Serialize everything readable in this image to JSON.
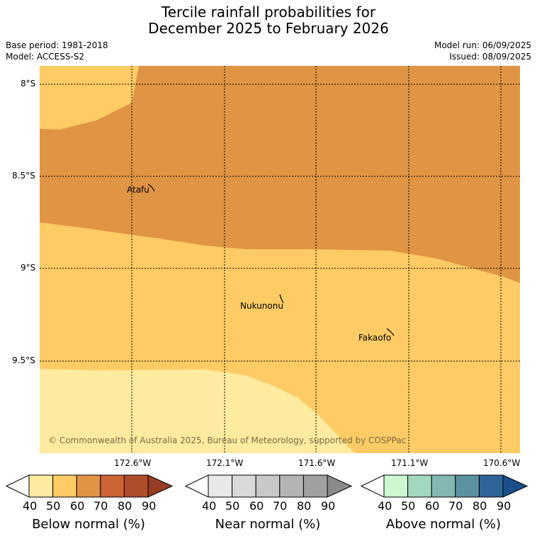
{
  "title": {
    "line1": "Tercile rainfall probabilities for",
    "line2": "December 2025 to February 2026"
  },
  "meta": {
    "base_period": "Base period: 1981-2018",
    "model": "Model: ACCESS-S2",
    "model_run": "Model run: 06/09/2025",
    "issued": "Issued: 08/09/2025"
  },
  "map": {
    "lat_ticks": [
      "8°S",
      "8.5°S",
      "9°S",
      "9.5°S"
    ],
    "lon_ticks": [
      "172.6°W",
      "172.1°W",
      "171.6°W",
      "171.1°W",
      "170.6°W"
    ],
    "places": [
      "Atafu",
      "Nukunonu",
      "Fakaofo"
    ],
    "copyright": "© Commonwealth of Australia 2025, Bureau of Meteorology, supported by COSPPac",
    "colors": {
      "below_50_60": "#fecb65",
      "below_60_70": "#e09544",
      "below_40_50": "#feeba0"
    }
  },
  "colorbars": [
    {
      "label": "Below normal (%)",
      "ticks": [
        "40",
        "50",
        "60",
        "70",
        "80",
        "90"
      ],
      "colors": [
        "#ffffff",
        "#feeba0",
        "#fecb65",
        "#e09544",
        "#cc6434",
        "#b04d2c",
        "#963b24"
      ]
    },
    {
      "label": "Near normal (%)",
      "ticks": [
        "40",
        "50",
        "60",
        "70",
        "80",
        "90"
      ],
      "colors": [
        "#ffffff",
        "#e8e8e8",
        "#d9d9d9",
        "#c8c8c8",
        "#b4b4b4",
        "#a0a0a0",
        "#8a8a8a"
      ]
    },
    {
      "label": "Above normal (%)",
      "ticks": [
        "40",
        "50",
        "60",
        "70",
        "80",
        "90"
      ],
      "colors": [
        "#ffffff",
        "#ccf7d0",
        "#a3d8bc",
        "#82b8b1",
        "#5b92a0",
        "#2e6498",
        "#1b4f8a"
      ]
    }
  ]
}
